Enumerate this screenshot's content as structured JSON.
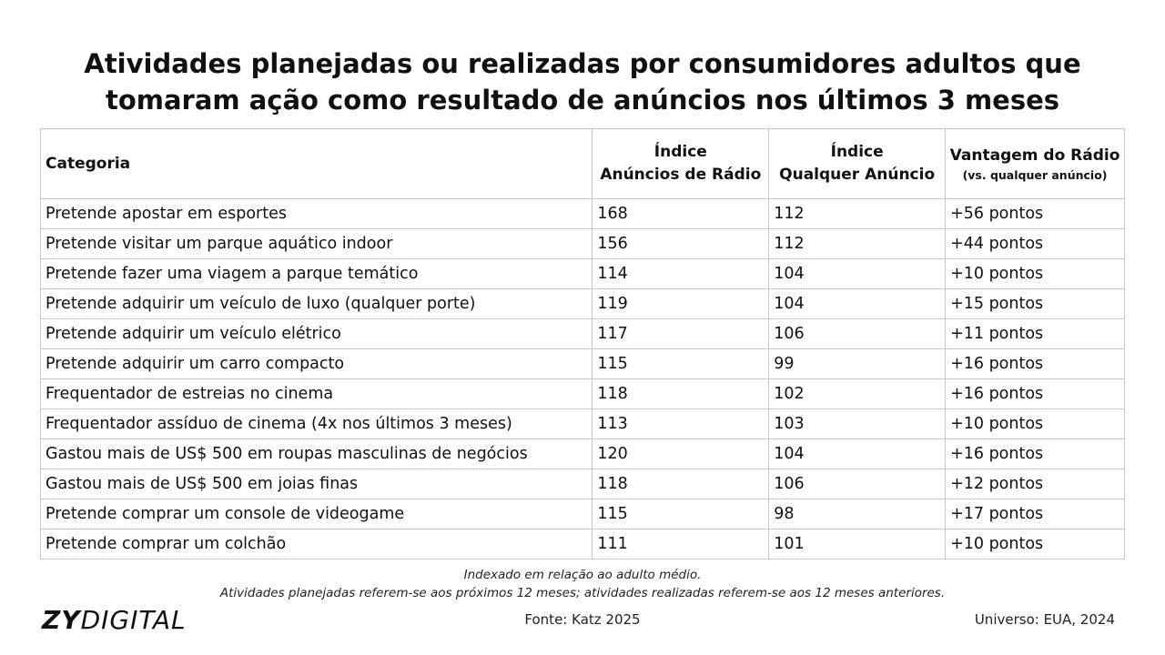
{
  "title": {
    "line1": "Atividades planejadas ou realizadas por consumidores adultos que",
    "line2": "tomaram ação como resultado de anúncios nos últimos 3 meses"
  },
  "table": {
    "headers": {
      "category": "Categoria",
      "radio_index_line1": "Índice",
      "radio_index_line2": "Anúncios de Rádio",
      "any_index_line1": "Índice",
      "any_index_line2": "Qualquer Anúncio",
      "advantage_main": "Vantagem do Rádio",
      "advantage_sub": "(vs. qualquer anúncio)"
    },
    "rows": [
      {
        "category": "Pretende apostar em esportes",
        "radio": "168",
        "any": "112",
        "advantage": "+56 pontos"
      },
      {
        "category": "Pretende visitar um parque aquático indoor",
        "radio": "156",
        "any": "112",
        "advantage": "+44 pontos"
      },
      {
        "category": "Pretende fazer uma viagem a parque temático",
        "radio": "114",
        "any": "104",
        "advantage": "+10 pontos"
      },
      {
        "category": "Pretende adquirir um veículo de luxo (qualquer porte)",
        "radio": "119",
        "any": "104",
        "advantage": "+15 pontos"
      },
      {
        "category": "Pretende adquirir um veículo elétrico",
        "radio": "117",
        "any": "106",
        "advantage": "+11 pontos"
      },
      {
        "category": "Pretende adquirir um carro compacto",
        "radio": "115",
        "any": "99",
        "advantage": "+16 pontos"
      },
      {
        "category": "Frequentador de estreias no cinema",
        "radio": "118",
        "any": "102",
        "advantage": "+16 pontos"
      },
      {
        "category": "Frequentador assíduo de cinema (4x nos últimos 3 meses)",
        "radio": "113",
        "any": "103",
        "advantage": "+10 pontos"
      },
      {
        "category": "Gastou mais de US$ 500 em roupas masculinas de negócios",
        "radio": "120",
        "any": "104",
        "advantage": "+16 pontos"
      },
      {
        "category": "Gastou mais de US$ 500 em joias finas",
        "radio": "118",
        "any": "106",
        "advantage": "+12 pontos"
      },
      {
        "category": "Pretende comprar um console de videogame",
        "radio": "115",
        "any": "98",
        "advantage": "+17 pontos"
      },
      {
        "category": "Pretende comprar um colchão",
        "radio": "111",
        "any": "101",
        "advantage": "+10 pontos"
      }
    ]
  },
  "notes": {
    "line1": "Indexado em relação ao adulto médio.",
    "line2": "Atividades planejadas referem-se aos próximos 12 meses; atividades realizadas referem-se aos 12 meses anteriores."
  },
  "footer": {
    "logo_bold": "ZY",
    "logo_light": "DIGITAL",
    "source": "Fonte: Katz 2025",
    "universe": "Universo: EUA, 2024"
  }
}
